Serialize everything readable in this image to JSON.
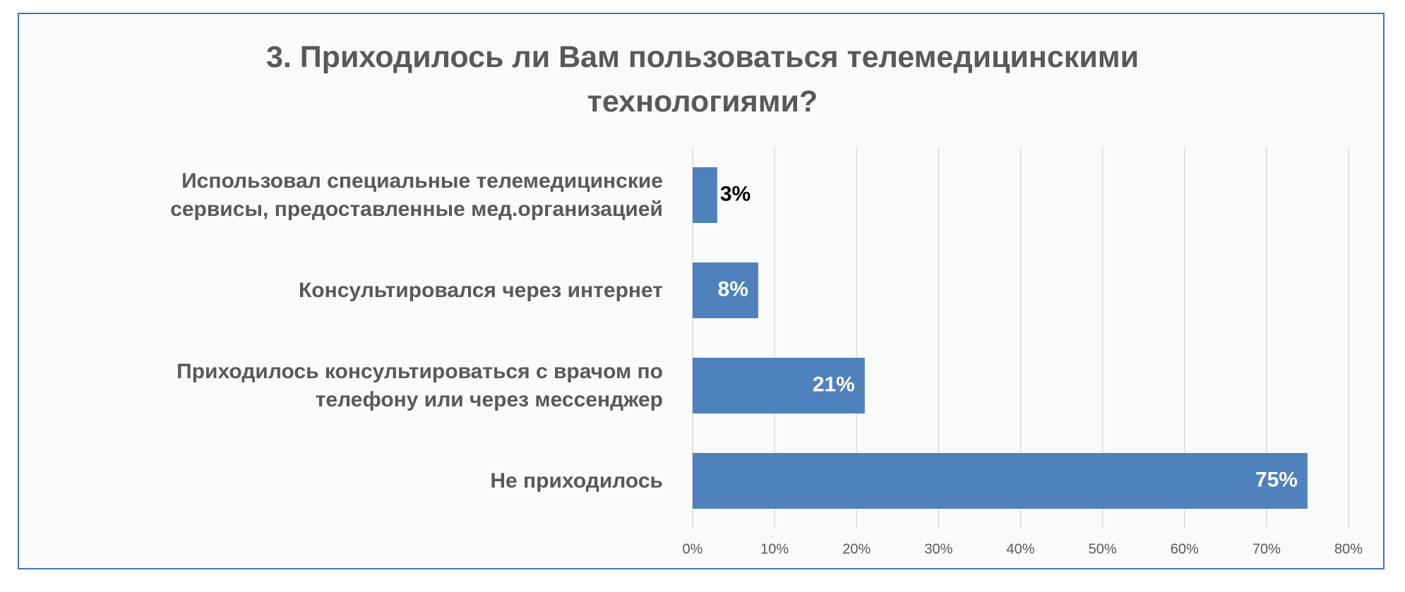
{
  "chart_data": {
    "type": "bar",
    "orientation": "horizontal",
    "title": "3. Приходилось ли Вам пользоваться телемедицинскими\nтехнологиями?",
    "categories": [
      "Использовал специальные телемедицинские\nсервисы, предоставленные мед.организацией",
      "Консультировался через интернет",
      "Приходилось консультироваться с врачом по\nтелефону или через мессенджер",
      "Не приходилось"
    ],
    "values": [
      3,
      8,
      21,
      75
    ],
    "value_labels": [
      "3%",
      "8%",
      "21%",
      "75%"
    ],
    "color": "#4f81bd",
    "xlim": [
      0,
      80
    ],
    "xticks": [
      {
        "value": 0,
        "label": "0%"
      },
      {
        "value": 10,
        "label": "10%"
      },
      {
        "value": 20,
        "label": "20%"
      },
      {
        "value": 30,
        "label": "30%"
      },
      {
        "value": 40,
        "label": "40%"
      },
      {
        "value": 50,
        "label": "50%"
      },
      {
        "value": 60,
        "label": "60%"
      },
      {
        "value": 70,
        "label": "70%"
      },
      {
        "value": 80,
        "label": "80%"
      }
    ],
    "grid": true
  }
}
